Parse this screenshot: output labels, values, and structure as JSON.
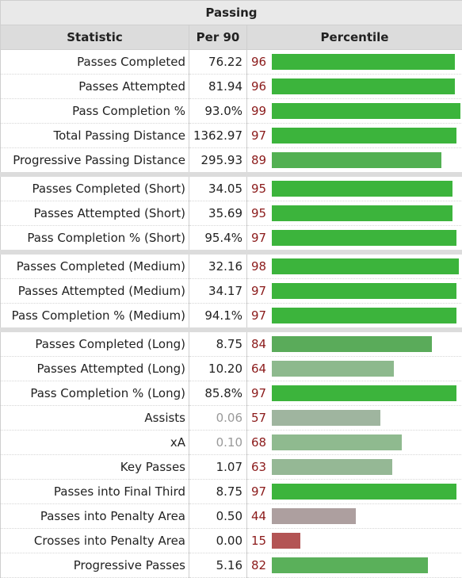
{
  "section": {
    "title": "Passing"
  },
  "columns": {
    "statistic": "Statistic",
    "per90": "Per 90",
    "percentile": "Percentile"
  },
  "rows": [
    {
      "stat": "Passes Completed",
      "per90": "76.22",
      "pct": 96,
      "pct_label": "96",
      "color": "#3cb43c",
      "dim": false,
      "sep": false
    },
    {
      "stat": "Passes Attempted",
      "per90": "81.94",
      "pct": 96,
      "pct_label": "96",
      "color": "#3cb43c",
      "dim": false,
      "sep": false
    },
    {
      "stat": "Pass Completion %",
      "per90": "93.0%",
      "pct": 99,
      "pct_label": "99",
      "color": "#3cb43c",
      "dim": false,
      "sep": false
    },
    {
      "stat": "Total Passing Distance",
      "per90": "1362.97",
      "pct": 97,
      "pct_label": "97",
      "color": "#3cb43c",
      "dim": false,
      "sep": false
    },
    {
      "stat": "Progressive Passing Distance",
      "per90": "295.93",
      "pct": 89,
      "pct_label": "89",
      "color": "#52b052",
      "dim": false,
      "sep": false
    },
    {
      "stat": "Passes Completed (Short)",
      "per90": "34.05",
      "pct": 95,
      "pct_label": "95",
      "color": "#3cb43c",
      "dim": false,
      "sep": true
    },
    {
      "stat": "Passes Attempted (Short)",
      "per90": "35.69",
      "pct": 95,
      "pct_label": "95",
      "color": "#3cb43c",
      "dim": false,
      "sep": false
    },
    {
      "stat": "Pass Completion % (Short)",
      "per90": "95.4%",
      "pct": 97,
      "pct_label": "97",
      "color": "#3cb43c",
      "dim": false,
      "sep": false
    },
    {
      "stat": "Passes Completed (Medium)",
      "per90": "32.16",
      "pct": 98,
      "pct_label": "98",
      "color": "#3cb43c",
      "dim": false,
      "sep": true
    },
    {
      "stat": "Passes Attempted (Medium)",
      "per90": "34.17",
      "pct": 97,
      "pct_label": "97",
      "color": "#3cb43c",
      "dim": false,
      "sep": false
    },
    {
      "stat": "Pass Completion % (Medium)",
      "per90": "94.1%",
      "pct": 97,
      "pct_label": "97",
      "color": "#3cb43c",
      "dim": false,
      "sep": false
    },
    {
      "stat": "Passes Completed (Long)",
      "per90": "8.75",
      "pct": 84,
      "pct_label": "84",
      "color": "#5aab5a",
      "dim": false,
      "sep": true
    },
    {
      "stat": "Passes Attempted (Long)",
      "per90": "10.20",
      "pct": 64,
      "pct_label": "64",
      "color": "#8db98d",
      "dim": false,
      "sep": false
    },
    {
      "stat": "Pass Completion % (Long)",
      "per90": "85.8%",
      "pct": 97,
      "pct_label": "97",
      "color": "#3cb43c",
      "dim": false,
      "sep": false
    },
    {
      "stat": "Assists",
      "per90": "0.06",
      "pct": 57,
      "pct_label": "57",
      "color": "#9fb59f",
      "dim": true,
      "sep": false
    },
    {
      "stat": "xA",
      "per90": "0.10",
      "pct": 68,
      "pct_label": "68",
      "color": "#8fba8f",
      "dim": true,
      "sep": false
    },
    {
      "stat": "Key Passes",
      "per90": "1.07",
      "pct": 63,
      "pct_label": "63",
      "color": "#95b895",
      "dim": false,
      "sep": false
    },
    {
      "stat": "Passes into Final Third",
      "per90": "8.75",
      "pct": 97,
      "pct_label": "97",
      "color": "#3cb43c",
      "dim": false,
      "sep": false
    },
    {
      "stat": "Passes into Penalty Area",
      "per90": "0.50",
      "pct": 44,
      "pct_label": "44",
      "color": "#ad9f9f",
      "dim": false,
      "sep": false
    },
    {
      "stat": "Crosses into Penalty Area",
      "per90": "0.00",
      "pct": 15,
      "pct_label": "15",
      "color": "#b35454",
      "dim": false,
      "sep": false
    },
    {
      "stat": "Progressive Passes",
      "per90": "5.16",
      "pct": 82,
      "pct_label": "82",
      "color": "#5ab05a",
      "dim": false,
      "sep": false
    }
  ]
}
